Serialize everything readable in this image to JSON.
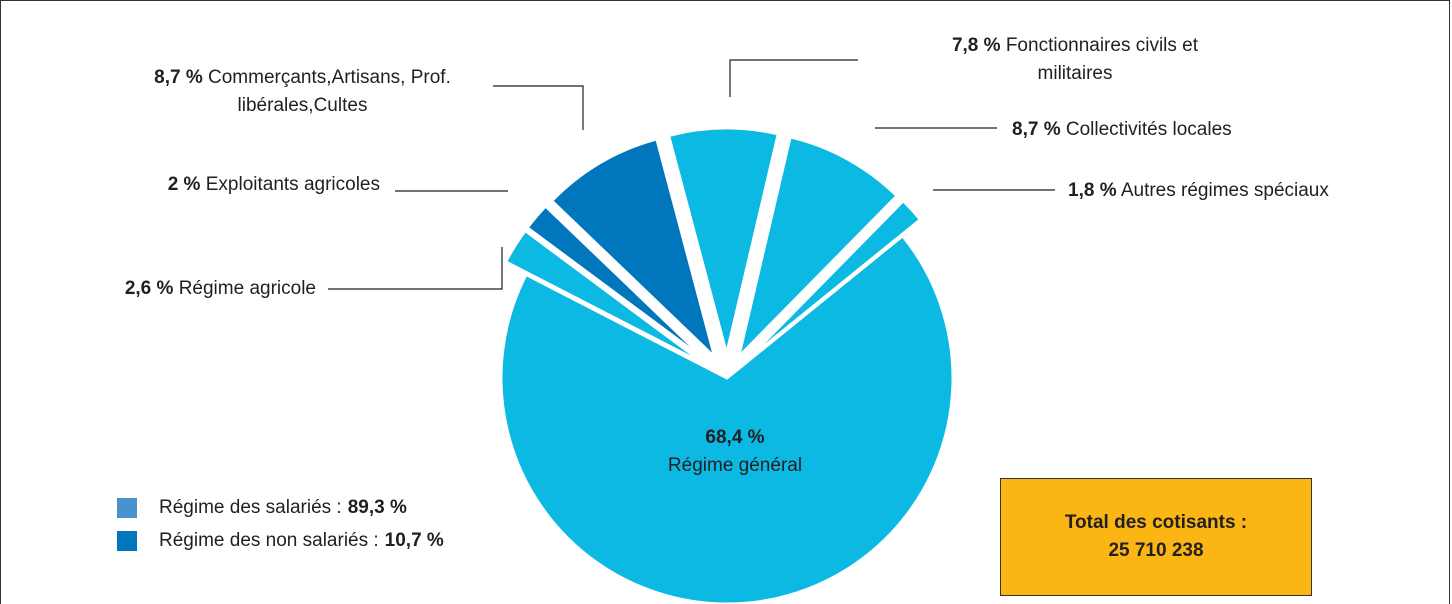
{
  "chart_data": {
    "type": "pie",
    "categories": [
      "Régime général",
      "Régime agricole",
      "Exploitants agricoles",
      "Commerçants,Artisans, Prof. libérales,Cultes",
      "Fonctionnaires civils et militaires",
      "Collectivités locales",
      "Autres régimes spéciaux"
    ],
    "values": [
      68.4,
      2.6,
      2,
      8.7,
      7.8,
      8.7,
      1.8
    ],
    "value_labels": [
      "68,4 %",
      "2,6 %",
      "2 %",
      "8,7 %",
      "7,8 %",
      "8,7 %",
      "1,8 %"
    ],
    "colors": [
      "#0bb9e3",
      "#0bb9e3",
      "#0077bd",
      "#0077bd",
      "#0bb9e3",
      "#0bb9e3",
      "#0bb9e3"
    ],
    "legend": [
      {
        "name": "Régime des salariés :",
        "share": "89,3 %",
        "color": "#4a91d0"
      },
      {
        "name": "Régime des non salariés :",
        "share": "10,7 %",
        "color": "#0077bd"
      }
    ],
    "total": {
      "label": "Total des cotisants :",
      "value": "25 710 238"
    }
  }
}
